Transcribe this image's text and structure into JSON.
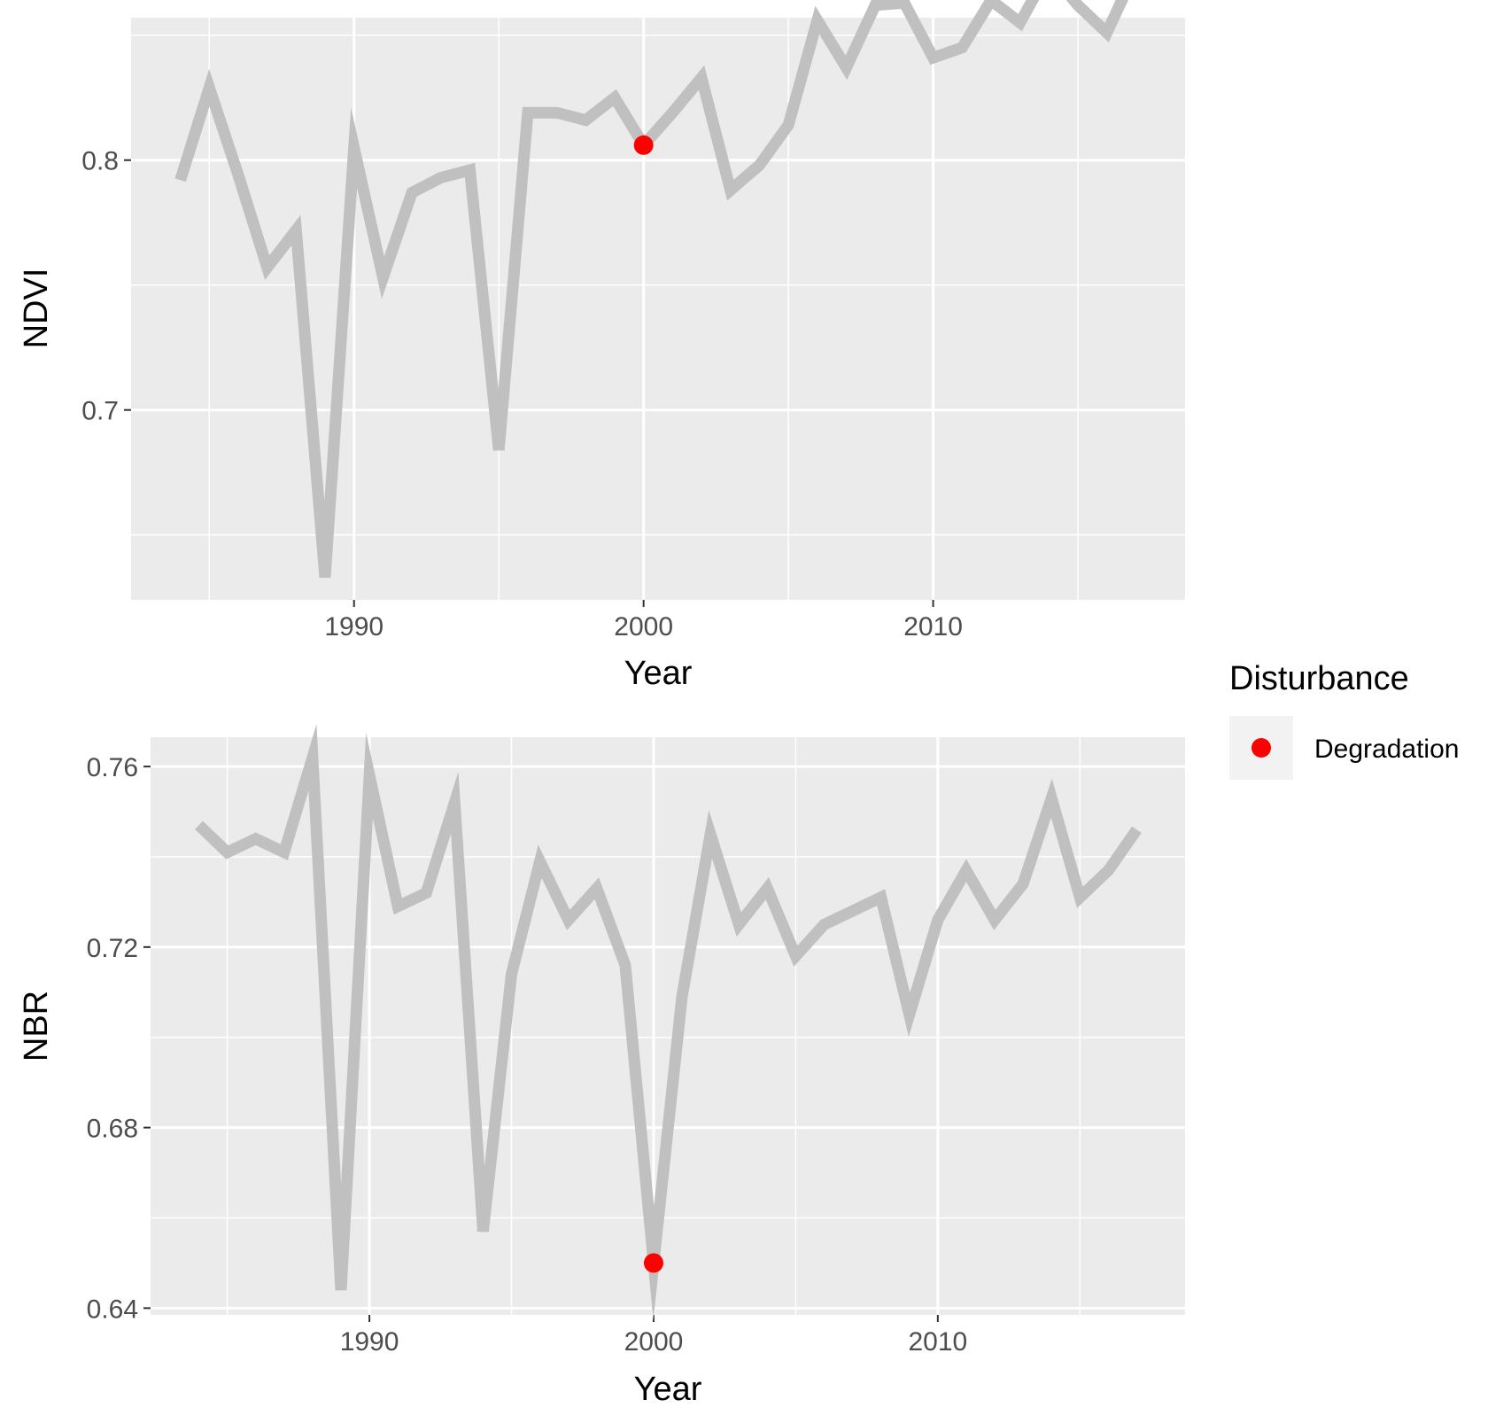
{
  "colors": {
    "panel_background": "#ebebeb",
    "grid_line": "#ffffff",
    "series_line": "#c0c0c0",
    "point": "#ff0000",
    "tick_text": "#4d4d4d",
    "tick_mark": "#333333",
    "legend_key_background": "#f2f2f2"
  },
  "legend": {
    "title": "Disturbance",
    "placement": "right",
    "items": [
      {
        "label": "Degradation",
        "color": "#ff0000",
        "shape": "point"
      }
    ]
  },
  "chart_data": [
    {
      "type": "line",
      "xlabel": "Year",
      "ylabel": "NDVI",
      "xlim": [
        1982.3,
        2018.7
      ],
      "ylim": [
        0.624,
        0.857
      ],
      "x_ticks": [
        1990,
        2000,
        2010
      ],
      "x_tick_labels": [
        "1990",
        "2000",
        "2010"
      ],
      "y_ticks": [
        0.7,
        0.8
      ],
      "y_tick_labels": [
        "0.7",
        "0.8"
      ],
      "y_minor_ticks": [
        0.65,
        0.75,
        0.85
      ],
      "x_minor_ticks": [
        1985,
        1995,
        2005,
        2015
      ],
      "grid": true,
      "series": [
        {
          "x": [
            1984,
            1985,
            1986,
            1987,
            1988,
            1989,
            1990,
            1991,
            1992,
            1993,
            1994,
            1995,
            1996,
            1997,
            1998,
            1999,
            2000,
            2001,
            2002,
            2003,
            2004,
            2005,
            2006,
            2007,
            2008,
            2009,
            2010,
            2011,
            2012,
            2013,
            2014,
            2015,
            2016,
            2017
          ],
          "y": [
            0.792,
            0.829,
            0.794,
            0.757,
            0.772,
            0.633,
            0.805,
            0.753,
            0.787,
            0.793,
            0.796,
            0.684,
            0.819,
            0.819,
            0.816,
            0.825,
            0.806,
            0.819,
            0.833,
            0.788,
            0.798,
            0.814,
            0.856,
            0.837,
            0.862,
            0.863,
            0.841,
            0.845,
            0.864,
            0.855,
            0.876,
            0.862,
            0.851,
            0.876
          ]
        }
      ],
      "points": [
        {
          "x": 2000,
          "y": 0.806,
          "label": "Degradation"
        }
      ]
    },
    {
      "type": "line",
      "xlabel": "Year",
      "ylabel": "NBR",
      "xlim": [
        1982.3,
        2018.7
      ],
      "ylim": [
        0.6385,
        0.7665
      ],
      "x_ticks": [
        1990,
        2000,
        2010
      ],
      "x_tick_labels": [
        "1990",
        "2000",
        "2010"
      ],
      "y_ticks": [
        0.64,
        0.68,
        0.72,
        0.76
      ],
      "y_tick_labels": [
        "0.64",
        "0.68",
        "0.72",
        "0.76"
      ],
      "y_minor_ticks": [
        0.66,
        0.7,
        0.74
      ],
      "x_minor_ticks": [
        1985,
        1995,
        2005,
        2015
      ],
      "grid": true,
      "series": [
        {
          "x": [
            1984,
            1985,
            1986,
            1987,
            1988,
            1989,
            1990,
            1991,
            1992,
            1993,
            1994,
            1995,
            1996,
            1997,
            1998,
            1999,
            2000,
            2001,
            2002,
            2003,
            2004,
            2005,
            2006,
            2007,
            2008,
            2009,
            2010,
            2011,
            2012,
            2013,
            2014,
            2015,
            2016,
            2017
          ],
          "y": [
            0.747,
            0.741,
            0.744,
            0.741,
            0.762,
            0.644,
            0.758,
            0.729,
            0.732,
            0.752,
            0.657,
            0.714,
            0.739,
            0.726,
            0.733,
            0.716,
            0.65,
            0.709,
            0.745,
            0.725,
            0.733,
            0.718,
            0.725,
            0.728,
            0.731,
            0.705,
            0.726,
            0.737,
            0.726,
            0.734,
            0.753,
            0.731,
            0.737,
            0.746
          ]
        }
      ],
      "points": [
        {
          "x": 2000,
          "y": 0.65,
          "label": "Degradation"
        }
      ]
    }
  ]
}
